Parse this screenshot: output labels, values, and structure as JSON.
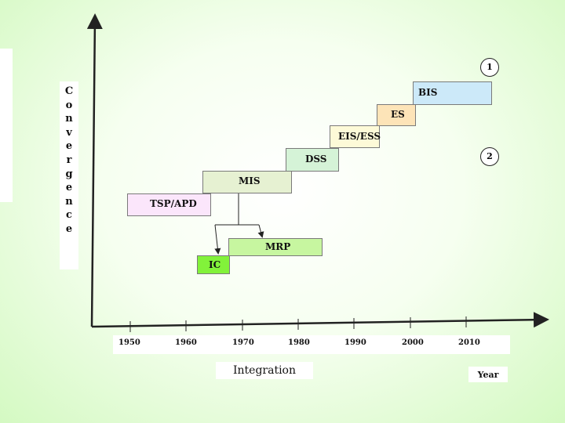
{
  "diagram": {
    "y_axis_label_letters": [
      "C",
      "o",
      "n",
      "v",
      "e",
      "r",
      "g",
      "e",
      "n",
      "c",
      "e"
    ],
    "x_axis_caption": "Integration",
    "year_caption": "Year",
    "year_ticks": [
      "1950",
      "1960",
      "1970",
      "1980",
      "1990",
      "2000",
      "2010"
    ],
    "markers": {
      "top": "1",
      "right": "2"
    },
    "eras": {
      "bis": "BIS",
      "es": "ES",
      "eis": "EIS/ESS",
      "dss": "DSS",
      "mis": "MIS",
      "tsp": "TSP/APD",
      "mrp": "MRP",
      "ic": "IC"
    },
    "colors": {
      "bis": "#cce9f9",
      "es": "#fde4b8",
      "eis": "#fdfad8",
      "dss": "#d5f3d7",
      "mis": "#e6f1d2",
      "tsp": "#fbe6fb",
      "mrp": "#c7f6a0",
      "ic": "#82f23a"
    }
  }
}
